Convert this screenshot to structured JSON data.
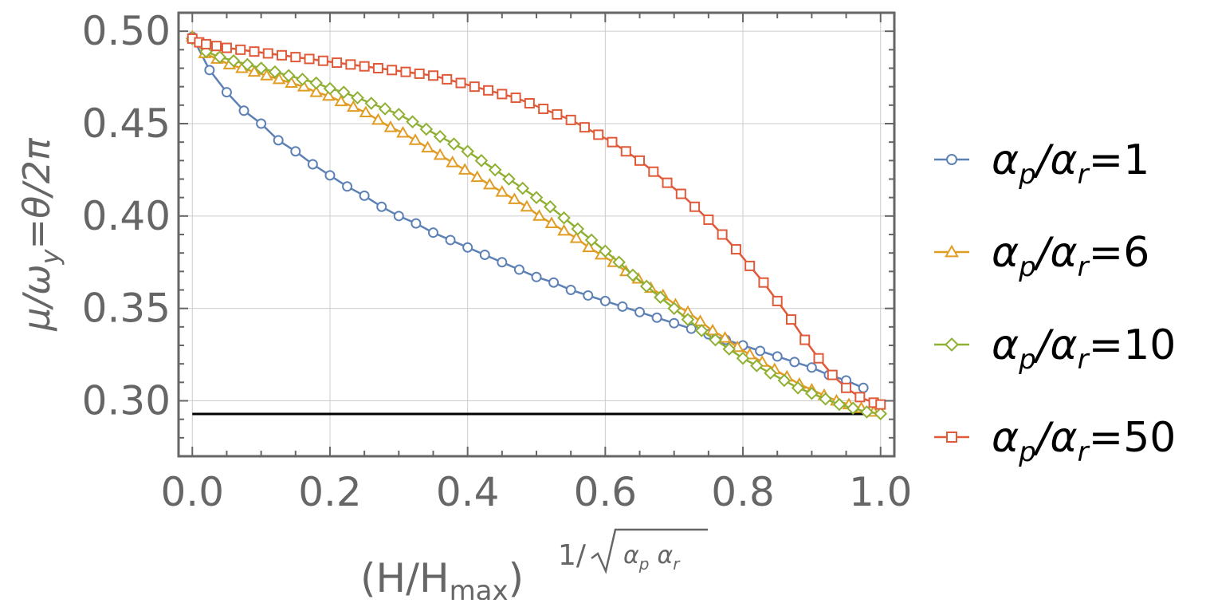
{
  "chart_data": {
    "type": "line",
    "title": "",
    "xlabel": {
      "base": "(H/H",
      "sub": "max",
      "close": ")",
      "exp_prefix": "1/",
      "root_a": "α",
      "root_a_sub": "p",
      "root_b": "α",
      "root_b_sub": "r"
    },
    "ylabel": "μ/ω_y=θ/2π",
    "ylabel_parts": {
      "a": "μ/ω",
      "a_sub": "y",
      "b": "=θ/2π"
    },
    "xlim": [
      -0.02,
      1.02
    ],
    "ylim": [
      0.27,
      0.51
    ],
    "xticks": [
      0.0,
      0.2,
      0.4,
      0.6,
      0.8,
      1.0
    ],
    "xtick_labels": [
      "0.0",
      "0.2",
      "0.4",
      "0.6",
      "0.8",
      "1.0"
    ],
    "yticks": [
      0.3,
      0.35,
      0.4,
      0.45,
      0.5
    ],
    "ytick_labels": [
      "0.30",
      "0.35",
      "0.40",
      "0.45",
      "0.50"
    ],
    "grid": true,
    "legend_position": "right",
    "reference_line": {
      "y": 0.2929,
      "x_range": [
        0.0,
        1.0
      ],
      "color": "#000000"
    },
    "series": [
      {
        "name": "α_p/α_r=1",
        "label": {
          "a": "α",
          "a_sub": "p",
          "mid": "/α",
          "b_sub": "r",
          "val": "=1"
        },
        "marker": "circle",
        "color": "#5e81b5",
        "x": [
          0.0,
          0.025,
          0.05,
          0.075,
          0.1,
          0.125,
          0.15,
          0.175,
          0.2,
          0.225,
          0.25,
          0.275,
          0.3,
          0.325,
          0.35,
          0.375,
          0.4,
          0.425,
          0.45,
          0.475,
          0.5,
          0.525,
          0.55,
          0.575,
          0.6,
          0.625,
          0.65,
          0.675,
          0.7,
          0.725,
          0.75,
          0.775,
          0.8,
          0.825,
          0.85,
          0.875,
          0.9,
          0.925,
          0.95,
          0.975
        ],
        "y": [
          0.497,
          0.479,
          0.467,
          0.457,
          0.45,
          0.441,
          0.435,
          0.428,
          0.422,
          0.416,
          0.411,
          0.405,
          0.4,
          0.396,
          0.391,
          0.387,
          0.383,
          0.379,
          0.375,
          0.371,
          0.367,
          0.364,
          0.36,
          0.357,
          0.354,
          0.351,
          0.348,
          0.345,
          0.342,
          0.339,
          0.336,
          0.333,
          0.33,
          0.327,
          0.324,
          0.321,
          0.318,
          0.314,
          0.311,
          0.307
        ]
      },
      {
        "name": "α_p/α_r=6",
        "label": {
          "a": "α",
          "a_sub": "p",
          "mid": "/α",
          "b_sub": "r",
          "val": "=6"
        },
        "marker": "triangle",
        "color": "#e19c24",
        "x": [
          0.0,
          0.018,
          0.036,
          0.054,
          0.072,
          0.09,
          0.108,
          0.126,
          0.144,
          0.162,
          0.18,
          0.198,
          0.216,
          0.234,
          0.252,
          0.27,
          0.288,
          0.306,
          0.324,
          0.342,
          0.36,
          0.378,
          0.396,
          0.414,
          0.432,
          0.45,
          0.468,
          0.486,
          0.504,
          0.522,
          0.54,
          0.558,
          0.576,
          0.594,
          0.612,
          0.63,
          0.648,
          0.666,
          0.684,
          0.702,
          0.72,
          0.738,
          0.756,
          0.774,
          0.792,
          0.81,
          0.828,
          0.846,
          0.864,
          0.882,
          0.9,
          0.918,
          0.936,
          0.954,
          0.972,
          0.99
        ],
        "y": [
          0.497,
          0.488,
          0.485,
          0.482,
          0.48,
          0.478,
          0.476,
          0.474,
          0.472,
          0.47,
          0.467,
          0.465,
          0.462,
          0.459,
          0.456,
          0.452,
          0.448,
          0.445,
          0.441,
          0.437,
          0.433,
          0.429,
          0.425,
          0.421,
          0.417,
          0.413,
          0.409,
          0.405,
          0.4,
          0.396,
          0.392,
          0.388,
          0.383,
          0.379,
          0.375,
          0.37,
          0.366,
          0.361,
          0.357,
          0.352,
          0.348,
          0.343,
          0.338,
          0.334,
          0.329,
          0.325,
          0.321,
          0.317,
          0.313,
          0.309,
          0.306,
          0.303,
          0.3,
          0.298,
          0.296,
          0.294
        ]
      },
      {
        "name": "α_p/α_r=10",
        "label": {
          "a": "α",
          "a_sub": "p",
          "mid": "/α",
          "b_sub": "r",
          "val": "=10"
        },
        "marker": "diamond",
        "color": "#8fb032",
        "x": [
          0.0,
          0.02,
          0.04,
          0.06,
          0.08,
          0.1,
          0.12,
          0.14,
          0.16,
          0.18,
          0.2,
          0.22,
          0.24,
          0.26,
          0.28,
          0.3,
          0.32,
          0.34,
          0.36,
          0.38,
          0.4,
          0.42,
          0.44,
          0.46,
          0.48,
          0.5,
          0.52,
          0.54,
          0.56,
          0.58,
          0.6,
          0.62,
          0.64,
          0.66,
          0.68,
          0.7,
          0.72,
          0.74,
          0.76,
          0.78,
          0.8,
          0.82,
          0.84,
          0.86,
          0.88,
          0.9,
          0.92,
          0.94,
          0.96,
          0.98,
          1.0
        ],
        "y": [
          0.496,
          0.489,
          0.486,
          0.484,
          0.482,
          0.48,
          0.478,
          0.476,
          0.474,
          0.472,
          0.469,
          0.467,
          0.464,
          0.461,
          0.458,
          0.455,
          0.451,
          0.447,
          0.443,
          0.439,
          0.435,
          0.43,
          0.425,
          0.42,
          0.415,
          0.41,
          0.405,
          0.399,
          0.393,
          0.387,
          0.381,
          0.375,
          0.368,
          0.362,
          0.356,
          0.35,
          0.344,
          0.338,
          0.333,
          0.328,
          0.323,
          0.319,
          0.315,
          0.311,
          0.307,
          0.304,
          0.301,
          0.298,
          0.296,
          0.294,
          0.293
        ]
      },
      {
        "name": "α_p/α_r=50",
        "label": {
          "a": "α",
          "a_sub": "p",
          "mid": "/α",
          "b_sub": "r",
          "val": "=50"
        },
        "marker": "square",
        "color": "#e05a3a",
        "x": [
          0.0,
          0.01,
          0.02,
          0.035,
          0.05,
          0.07,
          0.09,
          0.11,
          0.13,
          0.15,
          0.17,
          0.19,
          0.21,
          0.23,
          0.25,
          0.27,
          0.29,
          0.31,
          0.33,
          0.35,
          0.37,
          0.39,
          0.41,
          0.43,
          0.45,
          0.47,
          0.49,
          0.51,
          0.53,
          0.55,
          0.57,
          0.59,
          0.61,
          0.63,
          0.65,
          0.67,
          0.69,
          0.71,
          0.73,
          0.75,
          0.77,
          0.79,
          0.81,
          0.83,
          0.85,
          0.87,
          0.89,
          0.91,
          0.93,
          0.95,
          0.97,
          0.99,
          1.0
        ],
        "y": [
          0.496,
          0.494,
          0.493,
          0.492,
          0.491,
          0.49,
          0.489,
          0.488,
          0.487,
          0.486,
          0.485,
          0.484,
          0.483,
          0.482,
          0.481,
          0.48,
          0.479,
          0.478,
          0.477,
          0.476,
          0.474,
          0.472,
          0.47,
          0.468,
          0.466,
          0.464,
          0.461,
          0.458,
          0.455,
          0.452,
          0.448,
          0.444,
          0.44,
          0.435,
          0.43,
          0.424,
          0.418,
          0.412,
          0.405,
          0.398,
          0.39,
          0.382,
          0.373,
          0.364,
          0.354,
          0.344,
          0.333,
          0.323,
          0.314,
          0.307,
          0.302,
          0.299,
          0.298
        ]
      }
    ]
  }
}
